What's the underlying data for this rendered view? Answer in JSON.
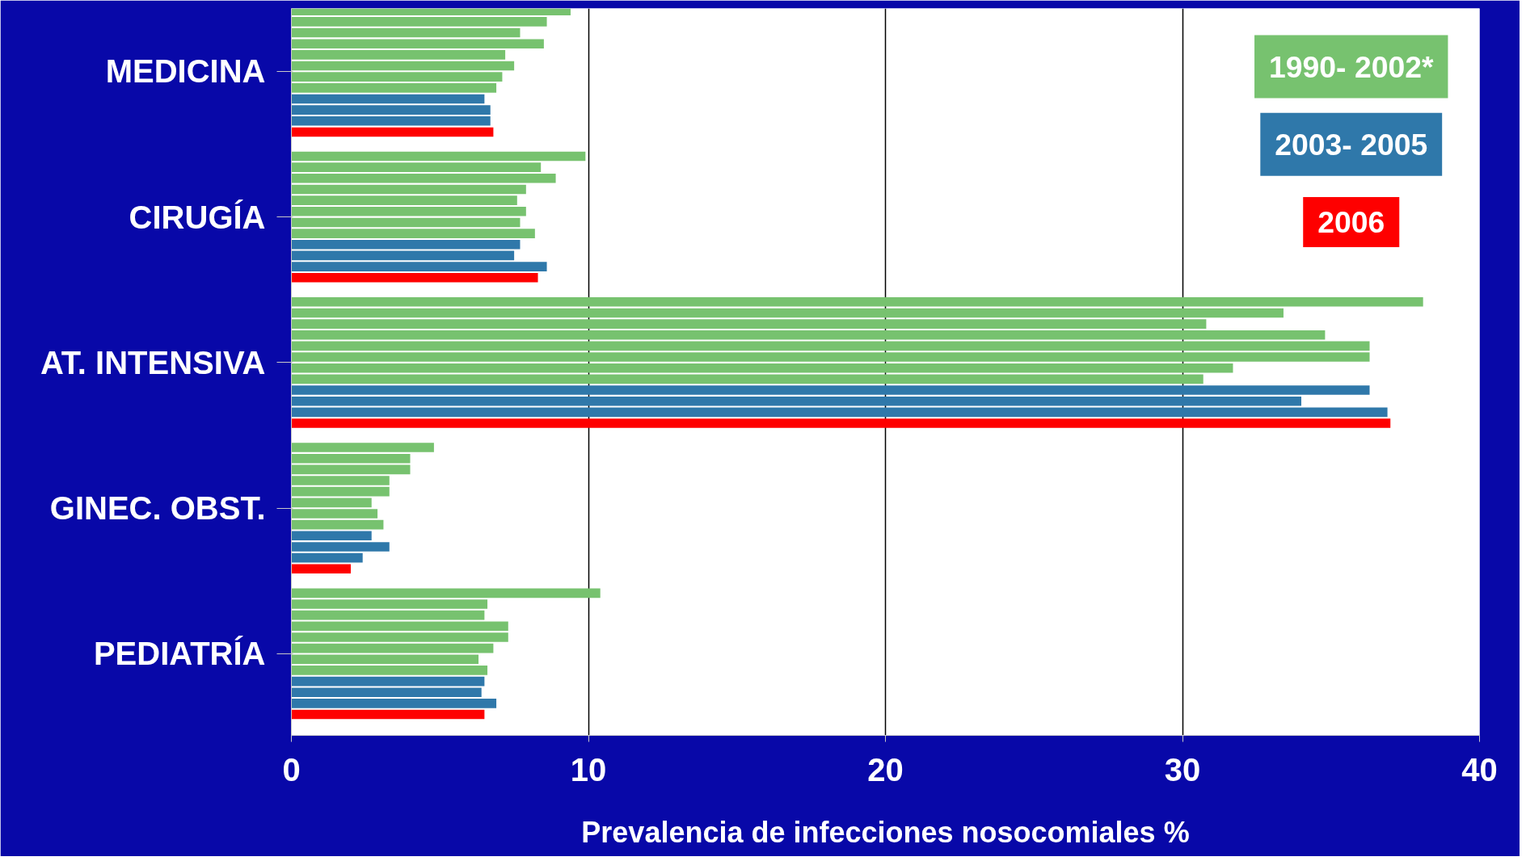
{
  "chart_data": {
    "type": "bar",
    "orientation": "horizontal",
    "xlabel": "Prevalencia de infecciones nosocomiales %",
    "categories": [
      "MEDICINA",
      "CIRUGÍA",
      "AT. INTENSIVA",
      "GINEC. OBST.",
      "PEDIATRÍA"
    ],
    "xlim": [
      0,
      40
    ],
    "xticks": [
      0,
      10,
      20,
      30,
      40
    ],
    "grid": "x",
    "legend": "top right",
    "series": [
      {
        "name": "1990- 2002*",
        "color": "#77c26f",
        "values": [
          9.4,
          9.9,
          38.1,
          4.8,
          10.4
        ]
      },
      {
        "color": "#77c26f",
        "values": [
          8.6,
          8.4,
          33.4,
          4.0,
          6.6
        ]
      },
      {
        "color": "#77c26f",
        "values": [
          7.7,
          8.9,
          30.8,
          4.0,
          6.5
        ]
      },
      {
        "color": "#77c26f",
        "values": [
          8.5,
          7.9,
          34.8,
          3.3,
          7.3
        ]
      },
      {
        "color": "#77c26f",
        "values": [
          7.2,
          7.6,
          36.3,
          3.3,
          7.3
        ]
      },
      {
        "color": "#77c26f",
        "values": [
          7.5,
          7.9,
          36.3,
          2.7,
          6.8
        ]
      },
      {
        "color": "#77c26f",
        "values": [
          7.1,
          7.7,
          31.7,
          2.9,
          6.3
        ]
      },
      {
        "color": "#77c26f",
        "values": [
          6.9,
          8.2,
          30.7,
          3.1,
          6.6
        ]
      },
      {
        "name": "2003- 2005",
        "color": "#2f78aa",
        "values": [
          6.5,
          7.7,
          36.3,
          2.7,
          6.5
        ]
      },
      {
        "color": "#2f78aa",
        "values": [
          6.7,
          7.5,
          34.0,
          3.3,
          6.4
        ]
      },
      {
        "color": "#2f78aa",
        "values": [
          6.7,
          8.6,
          36.9,
          2.4,
          6.9
        ]
      },
      {
        "name": "2006",
        "color": "#fe0000",
        "values": [
          6.8,
          8.3,
          37.0,
          2.0,
          6.5
        ]
      }
    ]
  }
}
